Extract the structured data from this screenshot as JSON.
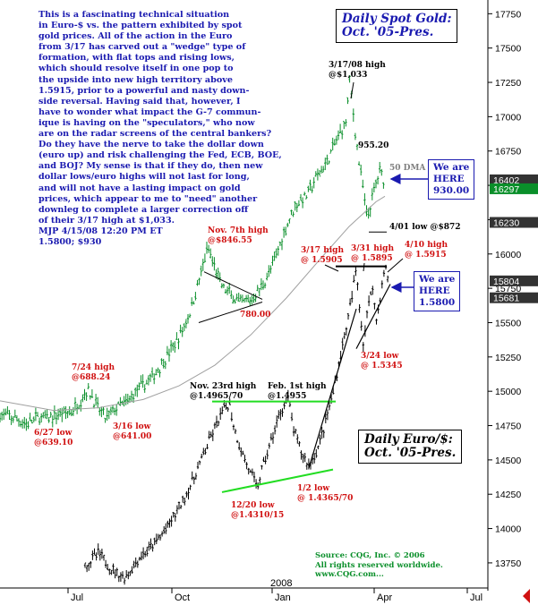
{
  "commentary": "This is a fascinating technical situation\nin Euro-$ vs. the pattern exhibited by spot\ngold prices. All of the action in the Euro\nfrom 3/17 has carved out a \"wedge\" type of\nformation, with flat tops and rising lows,\nwhich should resolve itself in one pop to\nthe upside into new high territory above\n1.5915, prior to a powerful and nasty down-\nside reversal. Having said that, however, I\nhave to wonder what impact the G-7 commun-\nique is having on the \"speculators,\" who now\nare on the radar screens of the central bankers?\nDo they have the nerve to take the dollar down\n(euro up) and risk challenging the Fed, ECB, BOE,\nand BOJ? My sense is that if they do, then new\ndollar lows/euro highs will not last for long,\nand will not have a lasting impact on gold\nprices, which appear to me to \"need\" another\ndownleg to complete a larger correction off\nof their 3/17 high at $1,033.\nMJP 4/15/08 12:20 PM ET\n1.5800;  $930",
  "gold_title": "Daily Spot Gold:\nOct. '05-Pres.",
  "euro_title": "Daily Euro/$:\nOct. '05-Pres.",
  "gold_here": "We are\nHERE\n930.00",
  "euro_here": "We are\nHERE\n1.5800",
  "source": "Source: CQG, Inc. © 2006\nAll rights reserved worldwide.\nwww.CQG.com...",
  "colors": {
    "gold_bars": "#0a8f2a",
    "euro_bars": "#000000",
    "ma_line": "#a0a0a0",
    "support_lines": "#22dd22",
    "annotation_red": "#d01010",
    "annotation_blue": "#1a1ab0",
    "tag_dark": "#333333",
    "tag_green": "#0a8f2a"
  },
  "chart_data": {
    "type": "line",
    "title": "Daily Spot Gold / Daily Euro/$",
    "x_ticks": [
      "Jul",
      "Oct",
      "2008",
      "Jan",
      "Apr",
      "Jul"
    ],
    "y_ticks": [
      13750,
      14000,
      14250,
      14500,
      14750,
      15000,
      15250,
      15500,
      15750,
      16000,
      16250,
      16500,
      16750,
      17000,
      17250,
      17500,
      17750
    ],
    "ylim": [
      13580,
      17850
    ],
    "price_tags": [
      {
        "label": "16230",
        "value": 16230,
        "style": "dark"
      },
      {
        "label": "16402",
        "value": 16540,
        "style": "dark"
      },
      {
        "label": "16297",
        "value": 16475,
        "style": "green"
      },
      {
        "label": "15804",
        "value": 15804,
        "style": "dark"
      },
      {
        "label": "15681",
        "value": 15681,
        "style": "dark"
      }
    ],
    "series": [
      {
        "name": "Daily Spot Gold",
        "values": [
          [
            0,
            14830
          ],
          [
            18,
            14800
          ],
          [
            30,
            14760
          ],
          [
            42,
            14810
          ],
          [
            55,
            14800
          ],
          [
            68,
            14840
          ],
          [
            80,
            14850
          ],
          [
            90,
            14935
          ],
          [
            97,
            15010
          ],
          [
            102,
            14975
          ],
          [
            110,
            14870
          ],
          [
            118,
            14800
          ],
          [
            130,
            14880
          ],
          [
            142,
            14920
          ],
          [
            155,
            15020
          ],
          [
            170,
            15100
          ],
          [
            185,
            15240
          ],
          [
            200,
            15390
          ],
          [
            212,
            15570
          ],
          [
            222,
            15800
          ],
          [
            232,
            16040
          ],
          [
            240,
            15900
          ],
          [
            248,
            15760
          ],
          [
            258,
            15700
          ],
          [
            268,
            15640
          ],
          [
            280,
            15660
          ],
          [
            292,
            15760
          ],
          [
            305,
            15920
          ],
          [
            318,
            16170
          ],
          [
            330,
            16360
          ],
          [
            342,
            16420
          ],
          [
            354,
            16560
          ],
          [
            366,
            16680
          ],
          [
            378,
            16860
          ],
          [
            386,
            16950
          ],
          [
            391,
            17280
          ],
          [
            395,
            17000
          ],
          [
            400,
            16720
          ],
          [
            405,
            16500
          ],
          [
            410,
            16260
          ],
          [
            415,
            16380
          ],
          [
            420,
            16520
          ],
          [
            425,
            16620
          ],
          [
            430,
            16500
          ]
        ]
      },
      {
        "name": "Daily Euro/$",
        "values": [
          [
            95,
            13730
          ],
          [
            110,
            13820
          ],
          [
            125,
            13700
          ],
          [
            140,
            13640
          ],
          [
            155,
            13780
          ],
          [
            170,
            13870
          ],
          [
            185,
            13990
          ],
          [
            200,
            14150
          ],
          [
            215,
            14340
          ],
          [
            228,
            14550
          ],
          [
            238,
            14700
          ],
          [
            248,
            14840
          ],
          [
            256,
            14920
          ],
          [
            262,
            14720
          ],
          [
            270,
            14560
          ],
          [
            280,
            14400
          ],
          [
            287,
            14300
          ],
          [
            295,
            14480
          ],
          [
            305,
            14680
          ],
          [
            315,
            14880
          ],
          [
            322,
            14950
          ],
          [
            328,
            14720
          ],
          [
            336,
            14560
          ],
          [
            345,
            14460
          ],
          [
            355,
            14580
          ],
          [
            363,
            14760
          ],
          [
            372,
            14990
          ],
          [
            380,
            15250
          ],
          [
            388,
            15500
          ],
          [
            393,
            15680
          ],
          [
            398,
            15900
          ],
          [
            402,
            15600
          ],
          [
            406,
            15340
          ],
          [
            410,
            15560
          ],
          [
            416,
            15790
          ],
          [
            420,
            15500
          ],
          [
            425,
            15700
          ],
          [
            430,
            15900
          ],
          [
            435,
            15780
          ]
        ]
      },
      {
        "name": "50 DMA",
        "values": [
          [
            0,
            14930
          ],
          [
            60,
            14860
          ],
          [
            110,
            14880
          ],
          [
            160,
            14940
          ],
          [
            200,
            15040
          ],
          [
            240,
            15190
          ],
          [
            280,
            15410
          ],
          [
            320,
            15680
          ],
          [
            360,
            15980
          ],
          [
            390,
            16200
          ],
          [
            420,
            16380
          ],
          [
            430,
            16420
          ]
        ]
      }
    ],
    "annotations": [
      {
        "text": "3/17/08 high\n@$1,033",
        "color": "black"
      },
      {
        "text": "955.20",
        "color": "black"
      },
      {
        "text": "50 DMA",
        "color": "gray"
      },
      {
        "text": "4/01 low @$872",
        "color": "black"
      },
      {
        "text": "Nov. 7th high\n@$846.55",
        "color": "red"
      },
      {
        "text": "780.00",
        "color": "red"
      },
      {
        "text": "7/24 high\n@688.24",
        "color": "red"
      },
      {
        "text": "6/27 low\n@639.10",
        "color": "red"
      },
      {
        "text": "3/16 low\n@641.00",
        "color": "red"
      },
      {
        "text": "3/17 high\n@ 1.5905",
        "color": "red"
      },
      {
        "text": "3/31 high\n@ 1.5895",
        "color": "red"
      },
      {
        "text": "4/10 high\n@ 1.5915",
        "color": "red"
      },
      {
        "text": "3/24 low\n@ 1.5345",
        "color": "red"
      },
      {
        "text": "Nov. 23rd high\n@1.4965/70",
        "color": "black"
      },
      {
        "text": "Feb. 1st high\n@1.4955",
        "color": "black"
      },
      {
        "text": "1/2 low\n@ 1.4365/70",
        "color": "red"
      },
      {
        "text": "12/20 low\n@1.4310/15",
        "color": "red"
      }
    ]
  }
}
